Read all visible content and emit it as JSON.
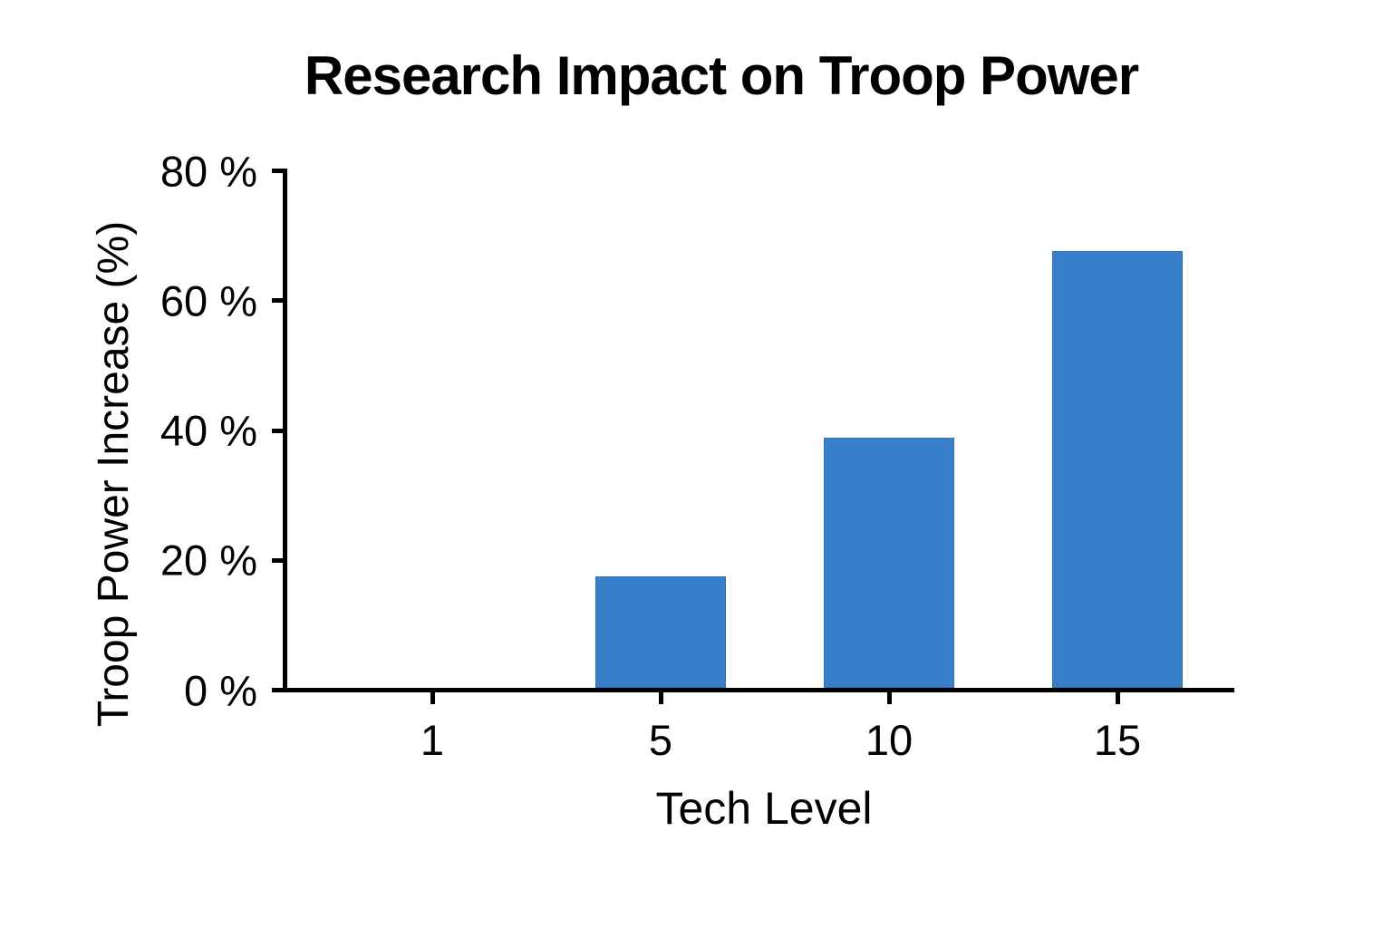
{
  "chart_data": {
    "type": "bar",
    "title": "Research Impact on Troop Power",
    "xlabel": "Tech Level",
    "ylabel": "Troop Power Increase (%)",
    "categories": [
      "1",
      "5",
      "10",
      "15"
    ],
    "values": [
      0,
      17.2,
      38.5,
      67.3
    ],
    "ylim": [
      0,
      80
    ],
    "yticks": [
      0,
      20,
      40,
      60,
      80
    ],
    "ytick_labels": [
      "0 %",
      "20 %",
      "40 %",
      "60 %",
      "80 %"
    ],
    "bar_color": "#387EC9",
    "bar_edge_color": "#2F6FB4",
    "axis_color": "#000000",
    "text_color": "#000000",
    "background_color": "#FFFFFF",
    "grid": false,
    "legend_position": "none"
  }
}
